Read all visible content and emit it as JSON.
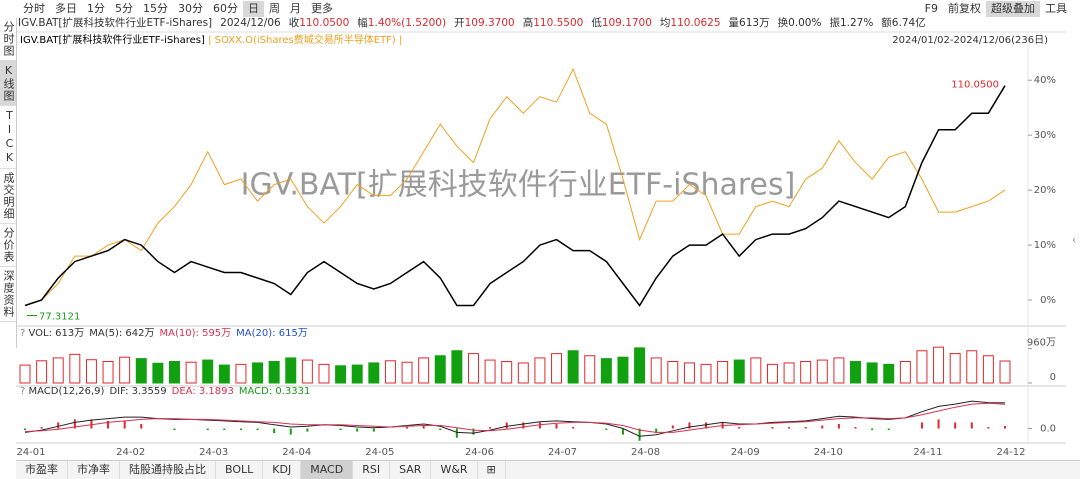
{
  "toolbar": {
    "items": [
      "分时",
      "多日",
      "1分",
      "5分",
      "15分",
      "30分",
      "60分",
      "日",
      "周",
      "月",
      "更多"
    ],
    "active": 7,
    "right": [
      "F9",
      "前复权",
      "超级叠加",
      "工具"
    ],
    "right_active": 2
  },
  "quote": {
    "code": "IGV.BAT[扩展科技软件行业ETF-iShares]",
    "date": "2024/12/06",
    "items": [
      {
        "label": "收",
        "value": "110.0500",
        "color": "#e0282d"
      },
      {
        "label": "幅",
        "value": "1.40%(1.5200)",
        "color": "#e0282d"
      },
      {
        "label": "开",
        "value": "109.3700",
        "color": "#e0282d"
      },
      {
        "label": "高",
        "value": "110.5500",
        "color": "#e0282d"
      },
      {
        "label": "低",
        "value": "109.1700",
        "color": "#e0282d"
      },
      {
        "label": "均",
        "value": "110.0625",
        "color": "#e0282d"
      },
      {
        "label": "量",
        "value": "613万",
        "color": "#333333"
      },
      {
        "label": "换",
        "value": "0.00%",
        "color": "#333333"
      },
      {
        "label": "振",
        "value": "1.27%",
        "color": "#333333"
      },
      {
        "label": "额",
        "value": "6.74亿",
        "color": "#333333"
      }
    ]
  },
  "sidebar": {
    "tabs": [
      "分时图",
      "K线图",
      "TICK",
      "成交明细",
      "分价表",
      "深度资料"
    ],
    "active": 1
  },
  "bottom_tabs": {
    "items": [
      "市盈率",
      "市净率",
      "陆股通持股占比",
      "BOLL",
      "KDJ",
      "MACD",
      "RSI",
      "SAR",
      "W&R"
    ],
    "active": 5
  },
  "chart_data": [
    {
      "type": "line",
      "watermark": "IGV.BAT[扩展科技软件行业ETF-iShares]",
      "subtitle": "2024/01/02-2024/12/06(236日)",
      "categories": [
        "24-01",
        null,
        null,
        null,
        null,
        null,
        "24-02",
        null,
        null,
        null,
        null,
        "24-03",
        null,
        null,
        null,
        null,
        "24-04",
        null,
        null,
        null,
        null,
        "24-05",
        null,
        null,
        null,
        null,
        null,
        "24-06",
        null,
        null,
        null,
        null,
        "24-07",
        null,
        null,
        null,
        null,
        "24-08",
        null,
        null,
        null,
        null,
        null,
        "24-09",
        null,
        null,
        null,
        null,
        "24-10",
        null,
        null,
        null,
        null,
        null,
        "24-11",
        null,
        null,
        null,
        null,
        "24-12"
      ],
      "series": [
        {
          "name": "IGV.BAT[扩展科技软件行业ETF-iShares]",
          "color": "#000000",
          "values": [
            -1,
            0,
            4,
            7,
            8,
            9,
            11,
            10,
            7,
            5,
            7,
            6,
            5,
            5,
            4,
            3,
            1,
            5,
            7,
            5,
            3,
            2,
            3,
            5,
            7,
            4,
            -1,
            -1,
            3,
            5,
            7,
            10,
            11,
            9,
            9,
            7,
            3,
            -1,
            4,
            8,
            10,
            10,
            12,
            8,
            11,
            12,
            12,
            13,
            15,
            18,
            17,
            16,
            15,
            17,
            25,
            31,
            31,
            34,
            34,
            39
          ]
        },
        {
          "name": "SOXX.O(iShares费城交易所半导体ETF)",
          "color": "#f0a020",
          "values": [
            -1,
            0,
            3,
            8,
            8,
            10,
            11,
            9,
            14,
            17,
            21,
            27,
            21,
            22,
            18,
            21,
            22,
            17,
            14,
            17,
            21,
            19,
            19,
            22,
            27,
            32,
            28,
            25,
            33,
            37,
            34,
            37,
            36,
            42,
            34,
            32,
            22,
            11,
            18,
            18,
            21,
            19,
            12,
            12,
            17,
            18,
            17,
            22,
            24,
            29,
            25,
            22,
            26,
            27,
            22,
            16,
            16,
            17,
            18,
            20
          ]
        }
      ],
      "annotations": [
        {
          "text": "110.0500",
          "color": "#e0282d"
        },
        {
          "text": "77.3121",
          "color": "#1a9a1a"
        }
      ],
      "ylim": [
        -4,
        45.5
      ],
      "yticks": [
        {
          "value": 0,
          "label": "0%"
        },
        {
          "value": 10,
          "label": "10%"
        },
        {
          "value": 20,
          "label": "20%"
        },
        {
          "value": 30,
          "label": "30%"
        },
        {
          "value": 40,
          "label": "40%"
        }
      ],
      "grid": false
    },
    {
      "type": "bar",
      "indicators": [
        {
          "text": "VOL: 613万",
          "color": "#333333"
        },
        {
          "text": "MA(5): 642万",
          "color": "#333333"
        },
        {
          "text": "MA(10): 595万",
          "color": "#d83050"
        },
        {
          "text": "MA(20): 615万",
          "color": "#2050d0"
        }
      ],
      "up_color": "#e0282d",
      "down_color": "#10a010",
      "values": [
        500,
        620,
        700,
        800,
        650,
        600,
        720,
        680,
        550,
        600,
        580,
        640,
        500,
        520,
        560,
        600,
        700,
        640,
        520,
        480,
        500,
        560,
        620,
        580,
        700,
        760,
        900,
        820,
        640,
        600,
        560,
        700,
        820,
        900,
        760,
        680,
        720,
        980,
        700,
        600,
        560,
        520,
        600,
        640,
        700,
        520,
        560,
        600,
        640,
        700,
        600,
        560,
        520,
        600,
        900,
        1000,
        820,
        900,
        760,
        613
      ],
      "ylim": [
        0,
        1200
      ],
      "yticks": [
        {
          "value": 960,
          "label": "960万"
        },
        0
      ]
    },
    {
      "type": "macd",
      "indicators": [
        {
          "text": "MACD(12,26,9)",
          "color": "#333333"
        },
        {
          "text": "DIF: 3.3559",
          "color": "#333333"
        },
        {
          "text": "DEA: 3.1893",
          "color": "#d83050"
        },
        {
          "text": "MACD: 0.3331",
          "color": "#1a9a1a"
        }
      ],
      "up_color": "#e0282d",
      "down_color": "#10a010",
      "values": [
        -0.2,
        0.2,
        0.8,
        1.2,
        1.2,
        1.0,
        1.0,
        0.6,
        0,
        -0.2,
        0,
        -0.2,
        -0.2,
        -0.2,
        -0.2,
        -0.6,
        -0.8,
        -0.4,
        0,
        -0.2,
        -0.4,
        -0.4,
        0,
        0.2,
        0.4,
        -0.2,
        -1.2,
        -0.8,
        0.2,
        0.8,
        0.8,
        0.8,
        0.6,
        0.2,
        0,
        -0.2,
        -0.8,
        -1.6,
        -0.6,
        0.4,
        0.8,
        0.8,
        0.8,
        0.2,
        0,
        0.2,
        0.2,
        0.2,
        0.4,
        0.6,
        0.2,
        -0.2,
        -0.2,
        0,
        0.8,
        1.2,
        0.8,
        0.8,
        0.2,
        0.33
      ],
      "series": [
        {
          "name": "DIF",
          "color": "#222222",
          "values": [
            -0.5,
            -0.2,
            0.3,
            0.8,
            1.1,
            1.3,
            1.5,
            1.5,
            1.3,
            1.2,
            1.2,
            1.1,
            1.0,
            0.9,
            0.8,
            0.5,
            0.2,
            0.3,
            0.5,
            0.4,
            0.2,
            0.1,
            0.2,
            0.4,
            0.6,
            0.3,
            -0.5,
            -0.6,
            -0.2,
            0.3,
            0.6,
            0.9,
            1.0,
            0.9,
            0.8,
            0.6,
            0.0,
            -1.0,
            -0.8,
            -0.3,
            0.2,
            0.5,
            0.8,
            0.6,
            0.6,
            0.8,
            0.9,
            1.0,
            1.3,
            1.6,
            1.5,
            1.3,
            1.2,
            1.4,
            2.2,
            2.9,
            3.2,
            3.6,
            3.4,
            3.36
          ]
        },
        {
          "name": "DEA",
          "color": "#d83050",
          "values": [
            -0.4,
            -0.3,
            -0.1,
            0.2,
            0.5,
            0.8,
            1.0,
            1.2,
            1.3,
            1.3,
            1.2,
            1.2,
            1.1,
            1.0,
            0.9,
            0.8,
            0.6,
            0.5,
            0.5,
            0.5,
            0.4,
            0.3,
            0.2,
            0.3,
            0.4,
            0.4,
            0.1,
            -0.2,
            -0.3,
            -0.1,
            0.2,
            0.5,
            0.7,
            0.8,
            0.8,
            0.7,
            0.4,
            -0.2,
            -0.5,
            -0.5,
            -0.2,
            0.1,
            0.4,
            0.5,
            0.6,
            0.7,
            0.8,
            0.9,
            1.1,
            1.3,
            1.4,
            1.4,
            1.3,
            1.4,
            1.8,
            2.3,
            2.8,
            3.2,
            3.3,
            3.19
          ]
        }
      ],
      "ylim": [
        -1.5,
        4
      ],
      "yticks": [
        {
          "value": 0,
          "label": "0.0"
        }
      ]
    }
  ]
}
